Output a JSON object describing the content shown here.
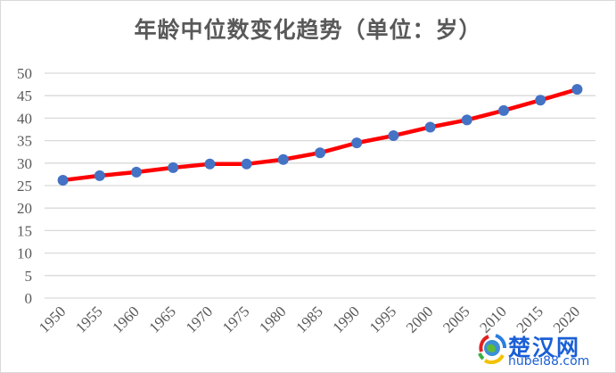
{
  "chart_data": {
    "type": "line",
    "title": "年龄中位数变化趋势（单位：岁）",
    "xlabel": "",
    "ylabel": "",
    "categories": [
      "1950",
      "1955",
      "1960",
      "1965",
      "1970",
      "1975",
      "1980",
      "1985",
      "1990",
      "1995",
      "2000",
      "2005",
      "2010",
      "2015",
      "2020"
    ],
    "series": [
      {
        "name": "年龄中位数",
        "values": [
          26.2,
          27.2,
          28.0,
          29.0,
          29.8,
          29.8,
          30.8,
          32.3,
          34.5,
          36.1,
          38.0,
          39.6,
          41.7,
          44.0,
          46.4
        ],
        "line_color": "#ff0000",
        "marker_color": "#4472c4"
      }
    ],
    "ylim": [
      0,
      50
    ],
    "yticks": [
      0,
      5,
      10,
      15,
      20,
      25,
      30,
      35,
      40,
      45,
      50
    ],
    "grid": true,
    "legend": "none",
    "x_tick_rotation": -45
  },
  "watermark": {
    "text_cn": "楚汉网",
    "text_en": "hubei88.com"
  }
}
